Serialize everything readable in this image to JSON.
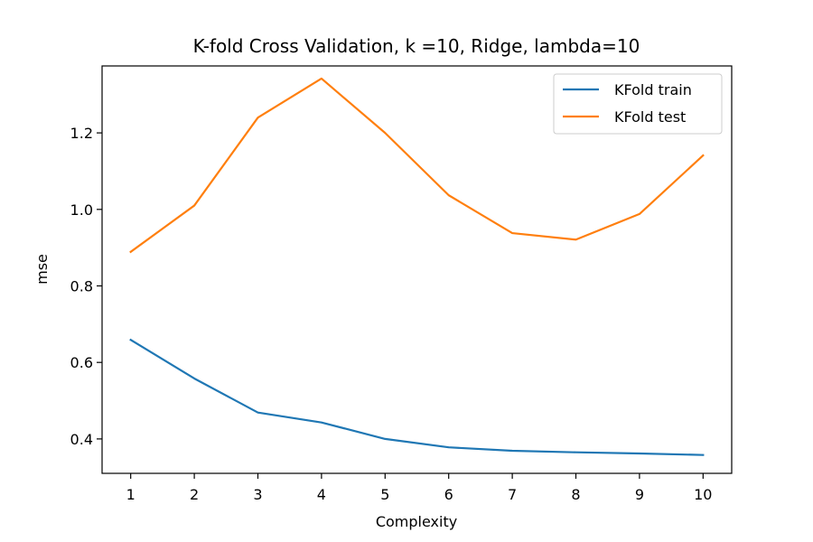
{
  "chart_data": {
    "type": "line",
    "title": "K-fold Cross Validation, k =10, Ridge, lambda=10",
    "xlabel": "Complexity",
    "ylabel": "mse",
    "x": [
      1,
      2,
      3,
      4,
      5,
      6,
      7,
      8,
      9,
      10
    ],
    "xlim": [
      0.55,
      10.45
    ],
    "ylim": [
      0.31,
      1.375
    ],
    "yticks": [
      0.4,
      0.6,
      0.8,
      1.0,
      1.2
    ],
    "ytick_labels": [
      "0.4",
      "0.6",
      "0.8",
      "1.0",
      "1.2"
    ],
    "xtick_labels": [
      "1",
      "2",
      "3",
      "4",
      "5",
      "6",
      "7",
      "8",
      "9",
      "10"
    ],
    "grid": false,
    "legend_position": "top-right",
    "series": [
      {
        "name": "KFold train",
        "color": "#1f77b4",
        "values": [
          0.659,
          0.558,
          0.469,
          0.443,
          0.4,
          0.378,
          0.369,
          0.365,
          0.362,
          0.358
        ]
      },
      {
        "name": "KFold test",
        "color": "#ff7f0e",
        "values": [
          0.889,
          1.01,
          1.24,
          1.342,
          1.2,
          1.037,
          0.938,
          0.921,
          0.988,
          1.141
        ]
      }
    ]
  }
}
